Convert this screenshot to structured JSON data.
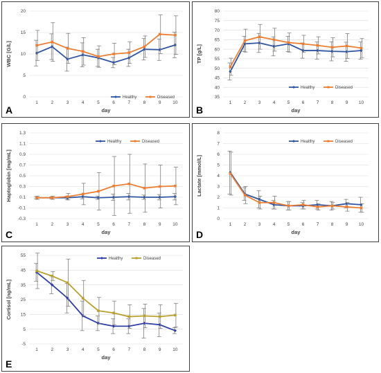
{
  "chart_data": [
    {
      "panel_letter": "A",
      "type": "line",
      "ylabel": "WBC [G/L]",
      "xlabel": "day",
      "ylim": [
        0,
        20
      ],
      "yticks": [
        "0",
        "5",
        "10",
        "15",
        "20"
      ],
      "x": [
        1,
        2,
        3,
        4,
        5,
        6,
        7,
        8,
        9,
        10
      ],
      "legend_position": "bottom-right",
      "series": [
        {
          "name": "Healthy",
          "color": "#2e54a2",
          "values": [
            10.2,
            11.7,
            8.8,
            9.8,
            9.1,
            8.0,
            9.1,
            11.1,
            11.0,
            12.1
          ],
          "errors": [
            3.0,
            3.0,
            2.8,
            2.8,
            2.0,
            1.2,
            2.0,
            2.5,
            2.5,
            3.0
          ]
        },
        {
          "name": "Diseased",
          "color": "#ed7d31",
          "values": [
            12.0,
            12.8,
            11.3,
            10.6,
            9.4,
            10.0,
            10.3,
            11.7,
            14.6,
            14.4
          ],
          "errors": [
            3.5,
            4.5,
            3.5,
            3.2,
            2.5,
            2.5,
            2.5,
            2.5,
            4.5,
            4.5
          ]
        }
      ]
    },
    {
      "panel_letter": "B",
      "type": "line",
      "ylabel": "TP [g/L]",
      "xlabel": "day",
      "ylim": [
        35,
        80
      ],
      "yticks": [
        "35",
        "40",
        "45",
        "50",
        "55",
        "60",
        "65",
        "70",
        "75",
        "80"
      ],
      "x": [
        1,
        2,
        3,
        4,
        5,
        6,
        7,
        8,
        9,
        10
      ],
      "legend_position": "bottom-right",
      "series": [
        {
          "name": "Healthy",
          "color": "#2e54a2",
          "values": [
            48.3,
            62.8,
            63.3,
            61.5,
            62.8,
            59.3,
            59.3,
            58.9,
            58.7,
            59.3
          ],
          "errors": [
            4.5,
            4.0,
            5.0,
            5.0,
            4.0,
            4.0,
            4.5,
            5.0,
            5.0,
            4.5
          ]
        },
        {
          "name": "Diseased",
          "color": "#ed7d31",
          "values": [
            50.8,
            64.5,
            66.5,
            65.0,
            63.5,
            62.8,
            62.0,
            61.0,
            61.7,
            60.6
          ],
          "errors": [
            4.5,
            6.0,
            6.5,
            6.0,
            5.0,
            4.5,
            4.5,
            5.0,
            6.5,
            5.0
          ]
        }
      ]
    },
    {
      "panel_letter": "C",
      "type": "line",
      "ylabel": "Haptoglobin [mg/mL]",
      "xlabel": "day",
      "ylim": [
        -0.3,
        1.3
      ],
      "yticks": [
        "-0.3",
        "-0.1",
        "0.1",
        "0.3",
        "0.5",
        "0.7",
        "0.9",
        "1.1",
        "1.3"
      ],
      "x": [
        1,
        2,
        3,
        4,
        5,
        6,
        7,
        8,
        9,
        10
      ],
      "legend_position": "top-right",
      "series": [
        {
          "name": "Healthy",
          "color": "#2e54a2",
          "values": [
            0.09,
            0.09,
            0.09,
            0.11,
            0.09,
            0.1,
            0.11,
            0.1,
            0.1,
            0.11
          ],
          "errors": [
            0.02,
            0.02,
            0.03,
            0.04,
            0.03,
            0.06,
            0.06,
            0.04,
            0.05,
            0.06
          ]
        },
        {
          "name": "Diseased",
          "color": "#ed7d31",
          "values": [
            0.09,
            0.09,
            0.11,
            0.16,
            0.21,
            0.31,
            0.35,
            0.27,
            0.3,
            0.31
          ],
          "errors": [
            0.03,
            0.03,
            0.06,
            0.2,
            0.35,
            0.55,
            0.55,
            0.45,
            0.4,
            0.35
          ]
        }
      ]
    },
    {
      "panel_letter": "D",
      "type": "line",
      "ylabel": "Lactate [mmol/L]",
      "xlabel": "day",
      "ylim": [
        0,
        8
      ],
      "yticks": [
        "0",
        "1",
        "2",
        "3",
        "4",
        "5",
        "6",
        "7",
        "8"
      ],
      "x": [
        1,
        2,
        3,
        4,
        5,
        6,
        7,
        8,
        9,
        10
      ],
      "legend_position": "top-right",
      "series": [
        {
          "name": "Healthy",
          "color": "#2e54a2",
          "values": [
            4.3,
            2.3,
            1.8,
            1.3,
            1.2,
            1.2,
            1.3,
            1.2,
            1.4,
            1.3
          ],
          "errors": [
            2.0,
            0.6,
            0.8,
            0.4,
            0.4,
            0.3,
            0.4,
            0.4,
            0.4,
            0.7
          ]
        },
        {
          "name": "Diseased",
          "color": "#ed7d31",
          "values": [
            4.2,
            2.2,
            1.5,
            1.5,
            1.2,
            1.3,
            1.1,
            1.2,
            1.1,
            1.0
          ],
          "errors": [
            2.0,
            0.8,
            0.6,
            0.6,
            0.4,
            0.4,
            0.3,
            0.3,
            0.4,
            0.4
          ]
        }
      ]
    },
    {
      "panel_letter": "E",
      "type": "line",
      "ylabel": "Cortisol [ng/mL]",
      "xlabel": "day",
      "ylim": [
        -5,
        55
      ],
      "yticks": [
        "-5",
        "5",
        "15",
        "25",
        "35",
        "45",
        "55"
      ],
      "x": [
        1,
        2,
        3,
        4,
        5,
        6,
        7,
        8,
        9,
        10
      ],
      "legend_position": "top-right",
      "series": [
        {
          "name": "Healthy",
          "color": "#2e3da8",
          "values": [
            43.5,
            35.0,
            26.0,
            14.0,
            9.0,
            7.0,
            7.0,
            9.0,
            8.0,
            4.0
          ],
          "errors": [
            6.0,
            6.0,
            10.0,
            10.0,
            5.0,
            5.0,
            5.0,
            10.0,
            8.0,
            2.0
          ]
        },
        {
          "name": "Diseased",
          "color": "#b8a02e",
          "values": [
            44.5,
            41.0,
            36.5,
            26.0,
            17.5,
            16.0,
            13.5,
            14.0,
            13.5,
            14.5
          ],
          "errors": [
            12.0,
            3.0,
            16.0,
            12.0,
            9.0,
            8.0,
            8.0,
            8.0,
            8.0,
            8.0
          ]
        }
      ]
    }
  ]
}
